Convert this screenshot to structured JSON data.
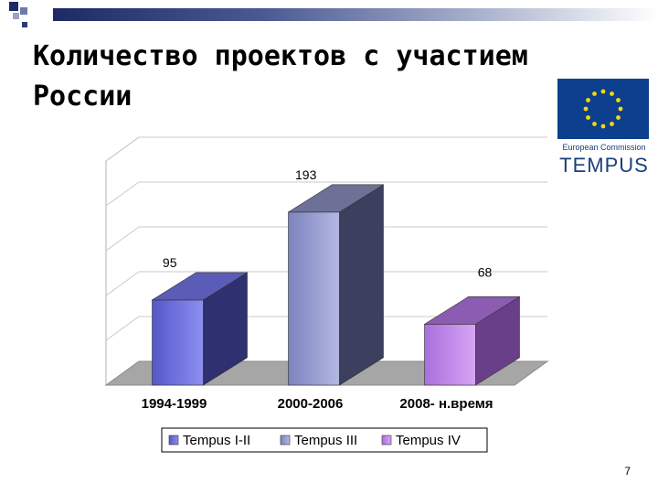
{
  "slide": {
    "title": "Количество проектов с участием России",
    "page_number": "7"
  },
  "logo": {
    "line1": "European Commission",
    "line2": "TEMPUS"
  },
  "colors": {
    "bar_a": "#6f72d8",
    "bar_b": "#9aa0d2",
    "bar_c": "#c08ee8",
    "floor": "#a6a6a6",
    "header_bar": "#1c2a66"
  },
  "chart_data": {
    "type": "bar",
    "categories": [
      "1994-1999",
      "2000-2006",
      "2008- н.время"
    ],
    "values": [
      95,
      193,
      68
    ],
    "data_labels": [
      "95",
      "193",
      "68"
    ],
    "legend": [
      "Tempus I-II",
      "Tempus III",
      "Tempus IV"
    ],
    "legend_position": "bottom",
    "ylim": [
      0,
      250
    ],
    "grid": true,
    "three_d": true
  }
}
